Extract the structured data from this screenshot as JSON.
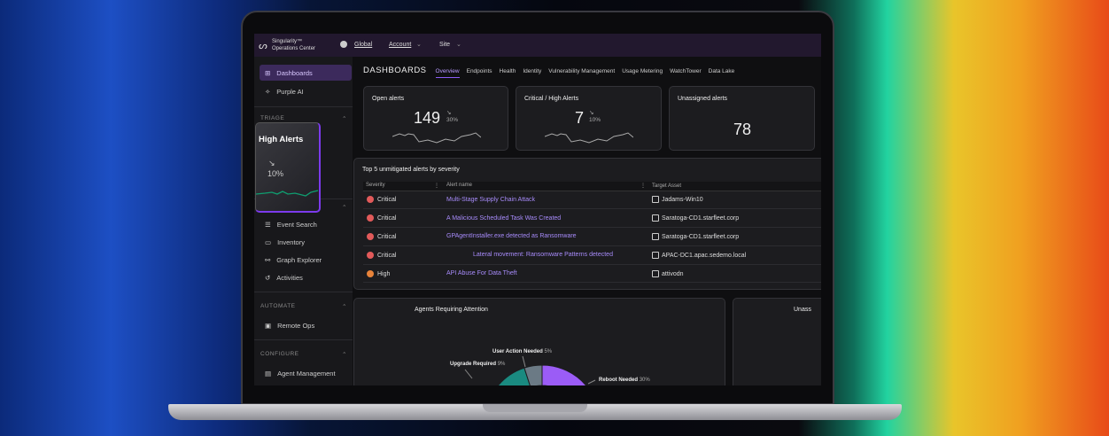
{
  "header": {
    "brand_line1": "Singularity™",
    "brand_line2": "Operations Center",
    "breadcrumb": [
      "Global",
      "Account",
      "Site"
    ]
  },
  "sidebar": {
    "items": [
      {
        "label": "Dashboards",
        "icon": "grid-icon",
        "active": true
      },
      {
        "label": "Purple AI",
        "icon": "purple-ai-icon"
      }
    ],
    "sections": [
      {
        "title": "TRIAGE"
      },
      {
        "title": "",
        "items": [
          {
            "label": "Event Search",
            "icon": "event-search-icon"
          },
          {
            "label": "Inventory",
            "icon": "inventory-icon"
          },
          {
            "label": "Graph Explorer",
            "icon": "graph-icon"
          },
          {
            "label": "Activities",
            "icon": "history-icon"
          }
        ]
      },
      {
        "title": "AUTOMATE",
        "items": [
          {
            "label": "Remote Ops",
            "icon": "terminal-icon"
          }
        ]
      },
      {
        "title": "CONFIGURE",
        "items": [
          {
            "label": "Agent Management",
            "icon": "agent-icon"
          }
        ]
      }
    ]
  },
  "popover": {
    "title": "High Alerts",
    "change": "10%"
  },
  "main": {
    "title": "DASHBOARDS",
    "tabs": [
      "Overview",
      "Endpoints",
      "Health",
      "Identity",
      "Vulnerability Management",
      "Usage Metering",
      "WatchTower",
      "Data Lake"
    ],
    "active_tab": "Overview",
    "kpis": [
      {
        "label": "Open alerts",
        "value": "149",
        "change": "30%"
      },
      {
        "label": "Critical / High Alerts",
        "value": "7",
        "change": "10%"
      },
      {
        "label": "Unassigned alerts",
        "value": "78"
      }
    ],
    "alerts_table": {
      "title": "Top 5 unmitigated alerts by severity",
      "columns": [
        "Severity",
        "Alert name",
        "Target Asset"
      ],
      "rows": [
        {
          "severity": "Critical",
          "name": "Multi-Stage Supply Chain Attack",
          "asset": "Jadams-Win10"
        },
        {
          "severity": "Critical",
          "name": "A Malicious Scheduled Task Was Created",
          "asset": "Saratoga-CD1.starfleet.corp"
        },
        {
          "severity": "Critical",
          "name": "GPAgentInstaller.exe detected as Ransomware",
          "asset": "Saratoga-CD1.starfleet.corp"
        },
        {
          "severity": "Critical",
          "name": "Lateral movement: Ransomware Patterns detected",
          "asset": "APAC-DC1.apac.sedemo.local"
        },
        {
          "severity": "High",
          "name": "API Abuse For Data Theft",
          "asset": "attivodn"
        }
      ]
    },
    "agents_chart": {
      "title": "Agents Requiring Attention",
      "slices": [
        {
          "label": "Reboot Needed",
          "value": "30%",
          "color": "#9b5cf6"
        },
        {
          "label": "Upgrade Required",
          "value": "9%",
          "color": "#1a8a80"
        },
        {
          "label": "User Action Needed",
          "value": "5%",
          "color": "#6b7a85"
        }
      ]
    },
    "right_card_title": "Unass"
  },
  "colors": {
    "accent": "#8b5cf6",
    "critical": "#e25a5a",
    "high": "#e8833a"
  }
}
